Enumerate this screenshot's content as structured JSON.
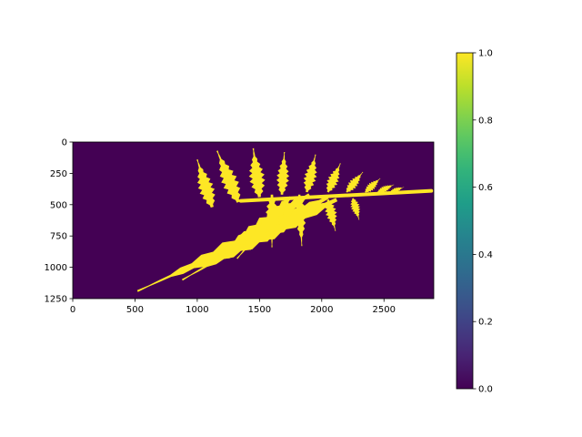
{
  "chart_data": {
    "type": "heatmap",
    "title": "",
    "xlabel": "",
    "ylabel": "",
    "image": {
      "width": 2900,
      "height": 1250,
      "colormap": "viridis",
      "background_value": 0.0,
      "foreground_value": 1.0,
      "description_values": "binary mask: fern leaf = 1.0, background = 0.0"
    },
    "xlim": [
      0,
      2900
    ],
    "ylim": [
      1250,
      0
    ],
    "x_ticks": [
      0,
      500,
      1000,
      1500,
      2000,
      2500
    ],
    "x_tick_labels": [
      "0",
      "500",
      "1000",
      "1500",
      "2000",
      "2500"
    ],
    "y_ticks": [
      0,
      250,
      500,
      750,
      1000,
      1250
    ],
    "y_tick_labels": [
      "0",
      "250",
      "500",
      "750",
      "1000",
      "1250"
    ],
    "colorbar": {
      "vmin": 0.0,
      "vmax": 1.0,
      "ticks": [
        0.0,
        0.2,
        0.4,
        0.6,
        0.8,
        1.0
      ],
      "tick_labels": [
        "0.0",
        "0.2",
        "0.4",
        "0.6",
        "0.8",
        "1.0"
      ]
    },
    "pinnae": [
      {
        "base": [
          2120,
          460
        ],
        "tip": [
          520,
          1190
        ],
        "half_width": 95
      },
      {
        "base": [
          2050,
          440
        ],
        "tip": [
          880,
          1100
        ],
        "half_width": 85
      },
      {
        "base": [
          1900,
          420
        ],
        "tip": [
          1080,
          960
        ],
        "half_width": 80
      },
      {
        "base": [
          1750,
          440
        ],
        "tip": [
          1320,
          930
        ],
        "half_width": 70
      },
      {
        "base": [
          1600,
          420
        ],
        "tip": [
          1600,
          840
        ],
        "half_width": 60
      },
      {
        "base": [
          1820,
          420
        ],
        "tip": [
          1840,
          830
        ],
        "half_width": 55
      },
      {
        "base": [
          2050,
          460
        ],
        "tip": [
          2110,
          710
        ],
        "half_width": 55
      },
      {
        "base": [
          2250,
          450
        ],
        "tip": [
          2300,
          620
        ],
        "half_width": 45
      },
      {
        "base": [
          1120,
          520
        ],
        "tip": [
          1000,
          140
        ],
        "half_width": 75
      },
      {
        "base": [
          1330,
          480
        ],
        "tip": [
          1160,
          70
        ],
        "half_width": 80
      },
      {
        "base": [
          1500,
          440
        ],
        "tip": [
          1450,
          50
        ],
        "half_width": 75
      },
      {
        "base": [
          1680,
          420
        ],
        "tip": [
          1700,
          80
        ],
        "half_width": 60
      },
      {
        "base": [
          1880,
          400
        ],
        "tip": [
          1950,
          100
        ],
        "half_width": 60
      },
      {
        "base": [
          2050,
          400
        ],
        "tip": [
          2150,
          170
        ],
        "half_width": 55
      },
      {
        "base": [
          2200,
          400
        ],
        "tip": [
          2330,
          240
        ],
        "half_width": 45
      },
      {
        "base": [
          2350,
          400
        ],
        "tip": [
          2470,
          290
        ],
        "half_width": 40
      },
      {
        "base": [
          2450,
          400
        ],
        "tip": [
          2580,
          340
        ],
        "half_width": 32
      },
      {
        "base": [
          2550,
          400
        ],
        "tip": [
          2660,
          360
        ],
        "half_width": 25
      }
    ],
    "rachis": {
      "start": [
        1350,
        470
      ],
      "end": [
        2880,
        390
      ]
    }
  }
}
